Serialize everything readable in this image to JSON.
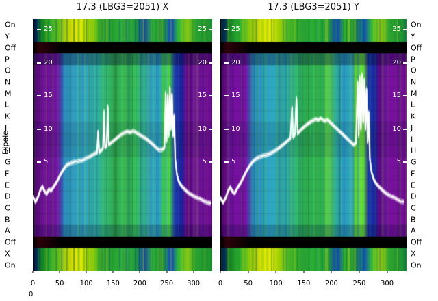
{
  "figure": {
    "y_axis_title": "Dipole",
    "bottom_left_label": "0",
    "row_labels": [
      "On",
      "Y",
      "Off",
      "P",
      "O",
      "N",
      "M",
      "L",
      "K",
      "J",
      "I",
      "H",
      "G",
      "F",
      "E",
      "D",
      "C",
      "B",
      "A",
      "Off",
      "X",
      "On"
    ]
  },
  "palette": {
    "row_types": [
      "strip",
      "strip",
      "off",
      "body",
      "body",
      "body",
      "body",
      "body",
      "body",
      "body",
      "body",
      "body",
      "body",
      "body",
      "body",
      "body",
      "body",
      "body",
      "body",
      "off",
      "strip",
      "strip"
    ],
    "row_shades": {
      "3": 0.35,
      "9": 0.1,
      "10": 0.14,
      "11": 0.1,
      "18": 0.22
    },
    "body_stops": [
      [
        0.0,
        "#0a0012"
      ],
      [
        0.012,
        "#55086e"
      ],
      [
        0.05,
        "#74109c"
      ],
      [
        0.135,
        "#7a12a4"
      ],
      [
        0.155,
        "#4a43b4"
      ],
      [
        0.175,
        "#2f8fc0"
      ],
      [
        0.27,
        "#2fa6c9"
      ],
      [
        0.36,
        "#30b2a2"
      ],
      [
        0.42,
        "#34ba68"
      ],
      [
        0.46,
        "#2da251"
      ],
      [
        0.5,
        "#38bd5c"
      ],
      [
        0.535,
        "#2da24e"
      ],
      [
        0.57,
        "#3cc261"
      ],
      [
        0.615,
        "#31b193"
      ],
      [
        0.66,
        "#2fa9c9"
      ],
      [
        0.71,
        "#2fa6c4"
      ],
      [
        0.728,
        "#43d02e"
      ],
      [
        0.742,
        "#2fa9c4"
      ],
      [
        0.758,
        "#55e42b"
      ],
      [
        0.772,
        "#35b877"
      ],
      [
        0.788,
        "#1d37b2"
      ],
      [
        0.83,
        "#1a28a4"
      ],
      [
        0.852,
        "#5f0d90"
      ],
      [
        0.91,
        "#7a10a0"
      ],
      [
        1.0,
        "#6e0c92"
      ]
    ],
    "strip_stops": [
      [
        0.0,
        "#000014"
      ],
      [
        0.02,
        "#002060"
      ],
      [
        0.05,
        "#128024"
      ],
      [
        0.1,
        "#2fae32"
      ],
      [
        0.155,
        "#7ec613"
      ],
      [
        0.21,
        "#d8dc00"
      ],
      [
        0.26,
        "#e6ee00"
      ],
      [
        0.31,
        "#a8d400"
      ],
      [
        0.37,
        "#46b426"
      ],
      [
        0.45,
        "#28a232"
      ],
      [
        0.52,
        "#32b23c"
      ],
      [
        0.58,
        "#20983a"
      ],
      [
        0.625,
        "#1340bc"
      ],
      [
        0.665,
        "#2fae3c"
      ],
      [
        0.72,
        "#259e30"
      ],
      [
        0.77,
        "#1148c0"
      ],
      [
        0.81,
        "#2fb63e"
      ],
      [
        0.86,
        "#8cc814"
      ],
      [
        0.91,
        "#2aa232"
      ],
      [
        1.0,
        "#1e9030"
      ]
    ],
    "off_stops": [
      [
        0.0,
        "#000000"
      ],
      [
        0.035,
        "#2c000a"
      ],
      [
        0.09,
        "#1a0006"
      ],
      [
        0.16,
        "#000000"
      ],
      [
        1.0,
        "#000000"
      ]
    ],
    "trace_color": "#ffffff",
    "text_color": "#111111"
  },
  "chart_data": [
    {
      "type": "heatmap",
      "title": "17.3 (LBG3=2051) X",
      "row_axis": "Dipole",
      "x_range": [
        0,
        335
      ],
      "x_ticks": [
        0,
        50,
        100,
        150,
        200,
        250,
        300
      ],
      "inner_scale_ticks": [
        25,
        20,
        15,
        10,
        5
      ],
      "seed": 7,
      "highlight_columns": [
        {
          "x0": 0.733,
          "x1": 0.752,
          "color": "#66ff22",
          "alpha": 0.3
        },
        {
          "x0": 0.45,
          "x1": 0.47,
          "color": "#0a6a20",
          "alpha": 0.25
        }
      ],
      "trace": [
        [
          0,
          -0.3
        ],
        [
          5,
          -1
        ],
        [
          10,
          -0.2
        ],
        [
          14,
          0.8
        ],
        [
          18,
          1.3
        ],
        [
          22,
          0.6
        ],
        [
          26,
          0.2
        ],
        [
          30,
          0.9
        ],
        [
          34,
          0.7
        ],
        [
          40,
          1.4
        ],
        [
          46,
          2.2
        ],
        [
          52,
          3.2
        ],
        [
          58,
          4
        ],
        [
          64,
          4.6
        ],
        [
          70,
          4.8
        ],
        [
          76,
          5
        ],
        [
          82,
          5.1
        ],
        [
          88,
          5.2
        ],
        [
          94,
          5.3
        ],
        [
          100,
          5.6
        ],
        [
          106,
          5.8
        ],
        [
          112,
          6.1
        ],
        [
          116,
          6.3
        ],
        [
          120,
          6.4
        ],
        [
          122,
          9.6
        ],
        [
          124,
          6.5
        ],
        [
          128,
          6.8
        ],
        [
          131,
          7
        ],
        [
          133,
          12.6
        ],
        [
          135,
          7.2
        ],
        [
          138,
          7.4
        ],
        [
          140,
          13.4
        ],
        [
          142,
          7.6
        ],
        [
          146,
          7.9
        ],
        [
          152,
          8.3
        ],
        [
          158,
          8.7
        ],
        [
          164,
          9.1
        ],
        [
          170,
          9.4
        ],
        [
          176,
          9.6
        ],
        [
          182,
          9.5
        ],
        [
          188,
          9.7
        ],
        [
          194,
          9.4
        ],
        [
          200,
          9.1
        ],
        [
          206,
          8.8
        ],
        [
          212,
          8.5
        ],
        [
          218,
          8.1
        ],
        [
          224,
          7.7
        ],
        [
          230,
          7.2
        ],
        [
          236,
          6.8
        ],
        [
          242,
          6.9
        ],
        [
          246,
          7.2
        ],
        [
          248,
          15.4
        ],
        [
          250,
          8.2
        ],
        [
          252,
          15.0
        ],
        [
          254,
          9.0
        ],
        [
          256,
          16.2
        ],
        [
          258,
          10.0
        ],
        [
          260,
          15.2
        ],
        [
          262,
          9.0
        ],
        [
          264,
          12.0
        ],
        [
          266,
          5.5
        ],
        [
          269,
          3.2
        ],
        [
          272,
          2.2
        ],
        [
          276,
          1.6
        ],
        [
          280,
          1.2
        ],
        [
          285,
          0.8
        ],
        [
          290,
          0.4
        ],
        [
          296,
          0.1
        ],
        [
          302,
          -0.2
        ],
        [
          308,
          -0.4
        ],
        [
          314,
          -0.6
        ],
        [
          320,
          -0.9
        ],
        [
          326,
          -1.1
        ],
        [
          332,
          -1.2
        ]
      ]
    },
    {
      "type": "heatmap",
      "title": "17.3 (LBG3=2051) Y",
      "row_axis": "Dipole",
      "x_range": [
        0,
        335
      ],
      "x_ticks": [
        0,
        50,
        100,
        150,
        200,
        250,
        300
      ],
      "inner_scale_ticks": [
        25,
        20,
        15,
        10,
        5
      ],
      "seed": 13,
      "highlight_columns": [
        {
          "x0": 0.72,
          "x1": 0.79,
          "color": "#aaff00",
          "alpha": 0.3
        },
        {
          "x0": 0.43,
          "x1": 0.56,
          "color": "#26c24e",
          "alpha": 0.25
        },
        {
          "x0": 0.56,
          "x1": 0.6,
          "color": "#ccff00",
          "alpha": 0.2
        }
      ],
      "trace": [
        [
          0,
          -0.4
        ],
        [
          5,
          -1.1
        ],
        [
          10,
          -0.3
        ],
        [
          14,
          0.7
        ],
        [
          18,
          1.2
        ],
        [
          22,
          0.5
        ],
        [
          26,
          0.3
        ],
        [
          30,
          1
        ],
        [
          36,
          1.8
        ],
        [
          42,
          2.8
        ],
        [
          48,
          3.8
        ],
        [
          54,
          4.6
        ],
        [
          60,
          5.2
        ],
        [
          66,
          5.6
        ],
        [
          72,
          5.8
        ],
        [
          78,
          6
        ],
        [
          84,
          6.1
        ],
        [
          90,
          6.3
        ],
        [
          96,
          6.6
        ],
        [
          102,
          6.9
        ],
        [
          108,
          7.3
        ],
        [
          114,
          7.7
        ],
        [
          118,
          8
        ],
        [
          122,
          8.3
        ],
        [
          126,
          8.6
        ],
        [
          129,
          13.2
        ],
        [
          131,
          8.8
        ],
        [
          134,
          9.1
        ],
        [
          137,
          14.6
        ],
        [
          139,
          9.3
        ],
        [
          143,
          9.7
        ],
        [
          148,
          10.1
        ],
        [
          153,
          10.5
        ],
        [
          158,
          10.8
        ],
        [
          163,
          11.1
        ],
        [
          168,
          11.3
        ],
        [
          172,
          11.5
        ],
        [
          176,
          11.3
        ],
        [
          180,
          11.6
        ],
        [
          184,
          11.4
        ],
        [
          188,
          11.2
        ],
        [
          192,
          11.4
        ],
        [
          196,
          11.1
        ],
        [
          200,
          10.8
        ],
        [
          205,
          10.4
        ],
        [
          210,
          10.0
        ],
        [
          215,
          9.6
        ],
        [
          220,
          9.2
        ],
        [
          225,
          8.8
        ],
        [
          230,
          8.4
        ],
        [
          235,
          8.0
        ],
        [
          240,
          7.6
        ],
        [
          244,
          7.9
        ],
        [
          247,
          17.0
        ],
        [
          249,
          9.0
        ],
        [
          251,
          17.8
        ],
        [
          253,
          10.0
        ],
        [
          255,
          18.2
        ],
        [
          257,
          11.0
        ],
        [
          259,
          17.4
        ],
        [
          261,
          10.0
        ],
        [
          263,
          16.0
        ],
        [
          265,
          8.0
        ],
        [
          267,
          12.5
        ],
        [
          269,
          5.5
        ],
        [
          272,
          3.5
        ],
        [
          276,
          2.4
        ],
        [
          280,
          1.8
        ],
        [
          285,
          1.3
        ],
        [
          290,
          0.9
        ],
        [
          295,
          0.5
        ],
        [
          300,
          0.2
        ],
        [
          306,
          -0.1
        ],
        [
          312,
          -0.3
        ],
        [
          318,
          -0.6
        ],
        [
          324,
          -0.9
        ],
        [
          330,
          -1.0
        ]
      ]
    }
  ]
}
